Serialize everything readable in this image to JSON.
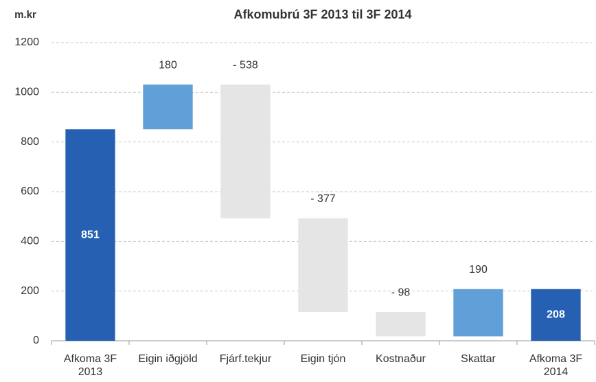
{
  "chart_data": {
    "type": "waterfall",
    "title": "Afkomubrú 3F 2013 til 3F 2014",
    "ylabel": "m.kr",
    "categories": [
      "Afkoma 3F 2013",
      "Eigin iðgjöld",
      "Fjárf.tekjur",
      "Eigin tjón",
      "Kostnaður",
      "Skattar",
      "Afkoma 3F 2014"
    ],
    "values": [
      851,
      180,
      -538,
      -377,
      -98,
      190,
      208
    ],
    "value_labels": [
      "851",
      "180",
      "- 538",
      "- 377",
      "- 98",
      "190",
      "208"
    ],
    "measure": [
      "absolute",
      "relative",
      "relative",
      "relative",
      "relative",
      "relative",
      "absolute"
    ],
    "colors": [
      "#2660b3",
      "#609fd8",
      "#e5e5e5",
      "#e5e5e5",
      "#e5e5e5",
      "#609fd8",
      "#2660b3"
    ],
    "ylim": [
      0,
      1200
    ],
    "yticks": [
      0,
      200,
      400,
      600,
      800,
      1000,
      1200
    ],
    "grid": true
  }
}
